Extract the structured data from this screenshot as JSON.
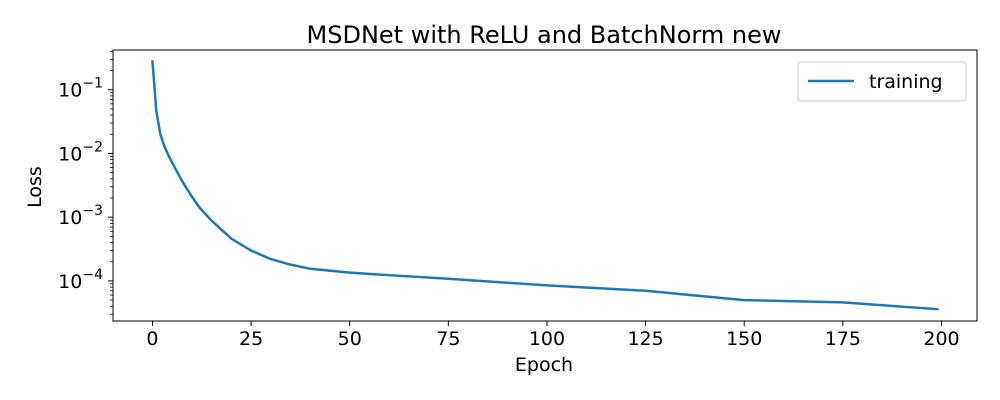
{
  "chart_data": {
    "type": "line",
    "title": "MSDNet with ReLU and BatchNorm new",
    "xlabel": "Epoch",
    "ylabel": "Loss",
    "xlim": [
      -10,
      209
    ],
    "ylim": [
      2.35e-05,
      0.42
    ],
    "yscale": "log",
    "grid": false,
    "legend_position": "top-right",
    "x_ticks": [
      0,
      25,
      50,
      75,
      100,
      125,
      150,
      175,
      200
    ],
    "y_ticks": [
      {
        "value": 0.1,
        "base": "10",
        "exp": "−1"
      },
      {
        "value": 0.01,
        "base": "10",
        "exp": "−2"
      },
      {
        "value": 0.001,
        "base": "10",
        "exp": "−3"
      },
      {
        "value": 0.0001,
        "base": "10",
        "exp": "−4"
      }
    ],
    "series": [
      {
        "name": "training",
        "color": "#1f77b4",
        "x": [
          0,
          1,
          2,
          3,
          4,
          5,
          6,
          7,
          8,
          10,
          12,
          15,
          20,
          25,
          30,
          35,
          40,
          50,
          60,
          75,
          100,
          125,
          150,
          175,
          199
        ],
        "y": [
          0.28,
          0.045,
          0.02,
          0.013,
          0.0095,
          0.0072,
          0.0055,
          0.0042,
          0.0033,
          0.0021,
          0.0014,
          0.00088,
          0.00046,
          0.0003,
          0.00022,
          0.00018,
          0.000155,
          0.000135,
          0.000123,
          0.000108,
          8.5e-05,
          7e-05,
          5e-05,
          4.6e-05,
          3.6e-05
        ]
      }
    ]
  }
}
